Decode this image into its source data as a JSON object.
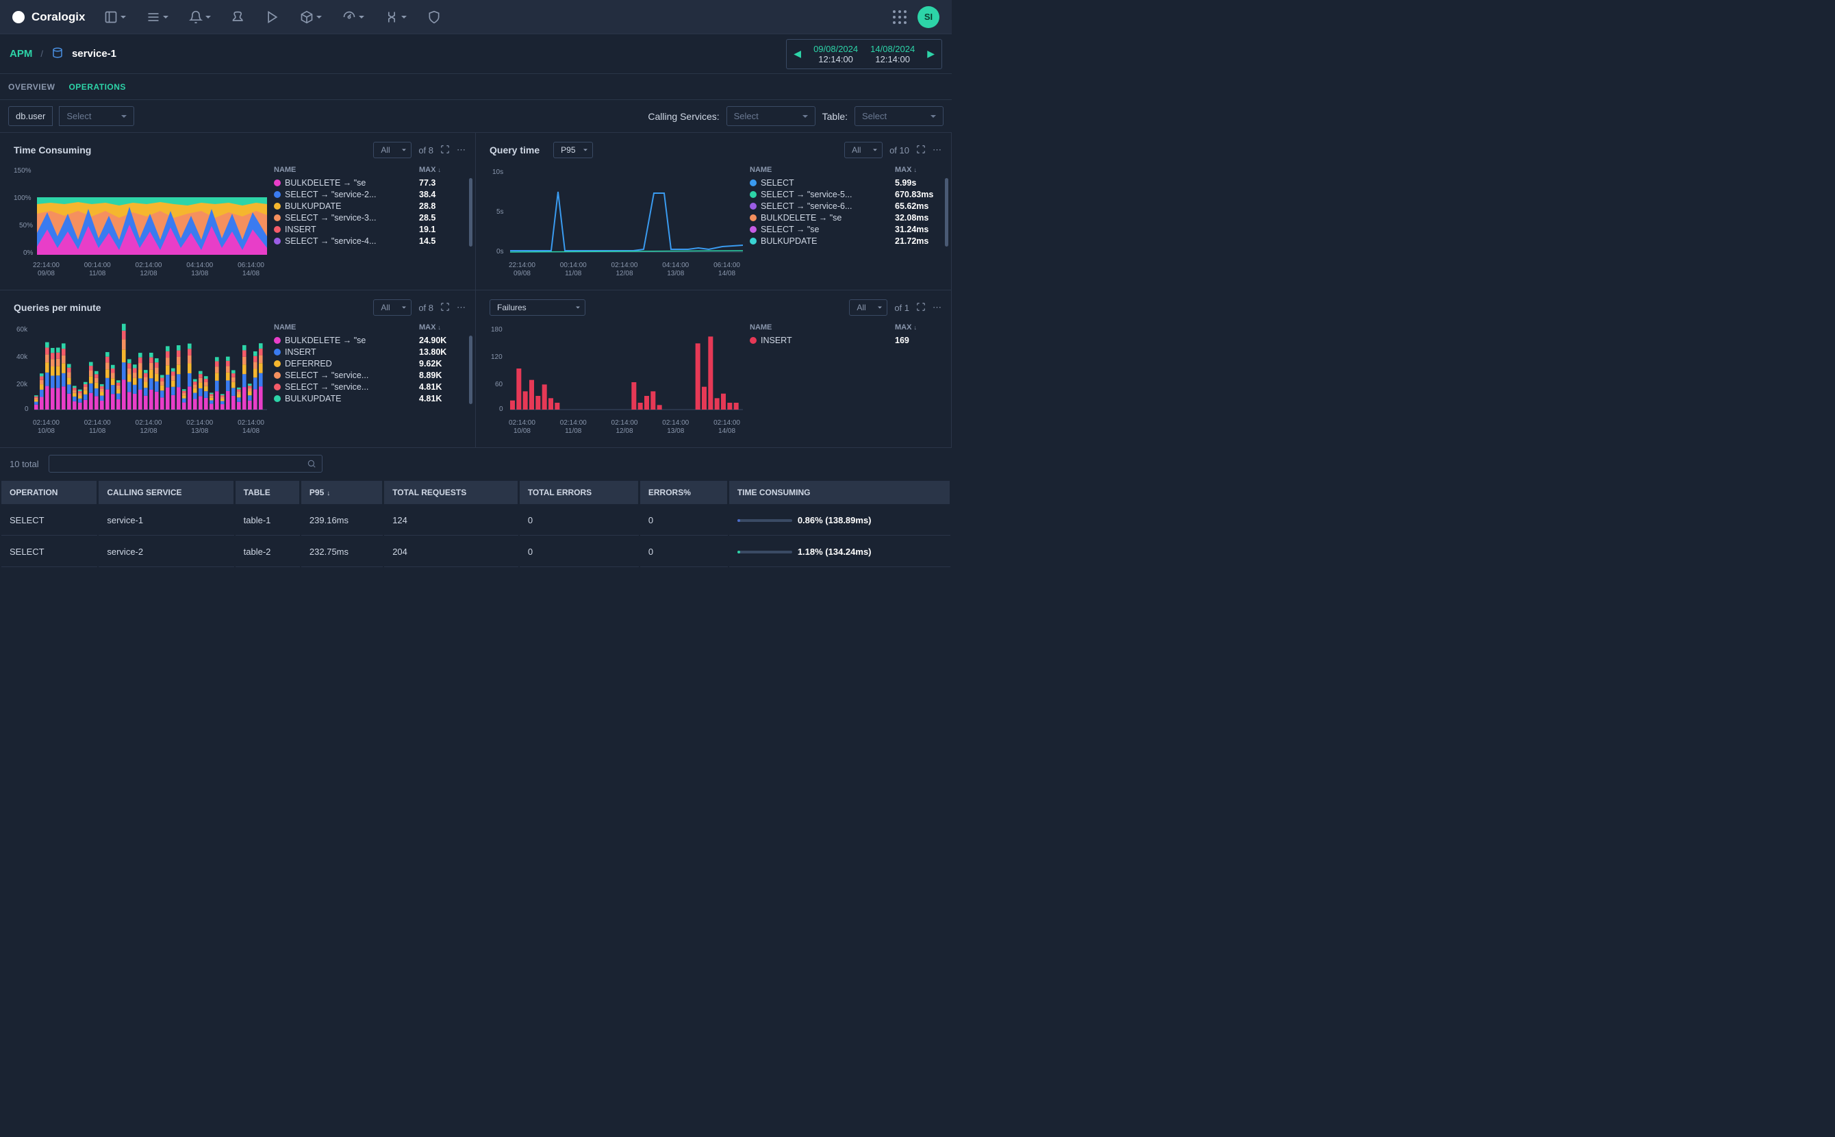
{
  "brand": "Coralogix",
  "avatar": "SI",
  "breadcrumb": {
    "apm": "APM",
    "service": "service-1"
  },
  "daterange": {
    "from_date": "09/08/2024",
    "from_time": "12:14:00",
    "to_date": "14/08/2024",
    "to_time": "12:14:00"
  },
  "tabs": {
    "overview": "OVERVIEW",
    "operations": "OPERATIONS",
    "active_index": 1
  },
  "filters": {
    "db_user_label": "db.user",
    "db_user_placeholder": "Select",
    "calling_services_label": "Calling Services:",
    "calling_services_placeholder": "Select",
    "table_label": "Table:",
    "table_placeholder": "Select"
  },
  "panels": {
    "time_consuming": {
      "title": "Time Consuming",
      "dropdown": "All",
      "of_text": "of 8",
      "y_labels": [
        "150%",
        "100%",
        "50%",
        "0%"
      ],
      "x_labels": [
        [
          "22:14:00",
          "09/08"
        ],
        [
          "00:14:00",
          "11/08"
        ],
        [
          "02:14:00",
          "12/08"
        ],
        [
          "04:14:00",
          "13/08"
        ],
        [
          "06:14:00",
          "14/08"
        ]
      ],
      "legend_header": {
        "name": "NAME",
        "max": "MAX"
      },
      "legend": [
        {
          "color": "#e83ec8",
          "name": "BULKDELETE → \"se",
          "max": "77.3"
        },
        {
          "color": "#3a7bf0",
          "name": "SELECT → \"service-2...",
          "max": "38.4"
        },
        {
          "color": "#f5b62e",
          "name": "BULKUPDATE",
          "max": "28.8"
        },
        {
          "color": "#f5905e",
          "name": "SELECT → \"service-3...",
          "max": "28.5"
        },
        {
          "color": "#f45b69",
          "name": "INSERT",
          "max": "19.1"
        },
        {
          "color": "#9b5de5",
          "name": "SELECT → \"service-4...",
          "max": "14.5"
        }
      ],
      "chart_colors": {
        "bg": "#1a2332"
      }
    },
    "query_time": {
      "title": "Query time",
      "percentile_select": "P95",
      "dropdown": "All",
      "of_text": "of 10",
      "y_labels": [
        "10s",
        "5s",
        "0s"
      ],
      "x_labels": [
        [
          "22:14:00",
          "09/08"
        ],
        [
          "00:14:00",
          "11/08"
        ],
        [
          "02:14:00",
          "12/08"
        ],
        [
          "04:14:00",
          "13/08"
        ],
        [
          "06:14:00",
          "14/08"
        ]
      ],
      "legend_header": {
        "name": "NAME",
        "max": "MAX"
      },
      "legend": [
        {
          "color": "#3a9bf0",
          "name": "SELECT",
          "max": "5.99s"
        },
        {
          "color": "#2dd4a8",
          "name": "SELECT → \"service-5...",
          "max": "670.83ms"
        },
        {
          "color": "#9b5de5",
          "name": "SELECT → \"service-6...",
          "max": "65.62ms"
        },
        {
          "color": "#f5905e",
          "name": "BULKDELETE → \"se",
          "max": "32.08ms"
        },
        {
          "color": "#c65de5",
          "name": "SELECT → \"se",
          "max": "31.24ms"
        },
        {
          "color": "#3ad4d4",
          "name": "BULKUPDATE",
          "max": "21.72ms"
        }
      ]
    },
    "qpm": {
      "title": "Queries per minute",
      "dropdown": "All",
      "of_text": "of 8",
      "y_labels": [
        "60k",
        "40k",
        "20k",
        "0"
      ],
      "x_labels": [
        [
          "02:14:00",
          "10/08"
        ],
        [
          "02:14:00",
          "11/08"
        ],
        [
          "02:14:00",
          "12/08"
        ],
        [
          "02:14:00",
          "13/08"
        ],
        [
          "02:14:00",
          "14/08"
        ]
      ],
      "legend_header": {
        "name": "NAME",
        "max": "MAX"
      },
      "legend": [
        {
          "color": "#e83ec8",
          "name": "BULKDELETE → \"se",
          "max": "24.90K"
        },
        {
          "color": "#3a7bf0",
          "name": "INSERT",
          "max": "13.80K"
        },
        {
          "color": "#f5b62e",
          "name": "DEFERRED",
          "max": "9.62K"
        },
        {
          "color": "#f5905e",
          "name": "SELECT → \"service...",
          "max": "8.89K"
        },
        {
          "color": "#f45b69",
          "name": "SELECT → \"service...",
          "max": "4.81K"
        },
        {
          "color": "#2dd4a8",
          "name": "BULKUPDATE",
          "max": "4.81K"
        }
      ]
    },
    "failures": {
      "type_select": "Failures",
      "dropdown": "All",
      "of_text": "of 1",
      "y_labels": [
        "180",
        "120",
        "60",
        "0"
      ],
      "x_labels": [
        [
          "02:14:00",
          "10/08"
        ],
        [
          "02:14:00",
          "11/08"
        ],
        [
          "02:14:00",
          "12/08"
        ],
        [
          "02:14:00",
          "13/08"
        ],
        [
          "02:14:00",
          "14/08"
        ]
      ],
      "legend_header": {
        "name": "NAME",
        "max": "MAX"
      },
      "legend": [
        {
          "color": "#e63956",
          "name": "INSERT",
          "max": "169"
        }
      ]
    }
  },
  "total_text": "10 total",
  "table": {
    "columns": [
      "OPERATION",
      "CALLING SERVICE",
      "TABLE",
      "P95",
      "TOTAL REQUESTS",
      "TOTAL ERRORS",
      "ERRORS%",
      "TIME CONSUMING"
    ],
    "sort_col_index": 3,
    "rows": [
      {
        "operation": "SELECT",
        "calling_service": "service-1",
        "table": "table-1",
        "p95": "239.16ms",
        "total_requests": "124",
        "total_errors": "0",
        "errors_pct": "0",
        "tc_pct": 0.86,
        "tc_text": "0.86% (138.89ms)",
        "tc_color": "#4a6bc8"
      },
      {
        "operation": "SELECT",
        "calling_service": "service-2",
        "table": "table-2",
        "p95": "232.75ms",
        "total_requests": "204",
        "total_errors": "0",
        "errors_pct": "0",
        "tc_pct": 1.18,
        "tc_text": "1.18% (134.24ms)",
        "tc_color": "#2dd4a8"
      }
    ]
  }
}
